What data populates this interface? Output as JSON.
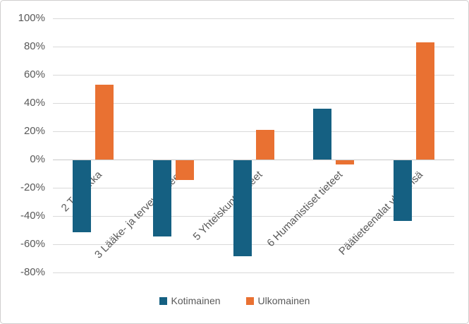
{
  "chart_data": {
    "type": "bar",
    "title": "",
    "xlabel": "",
    "ylabel": "",
    "categories": [
      "2 Tekniikka",
      "3 Lääke- ja terveystieteet",
      "5 Yhteiskuntatieteet",
      "6 Humanistiset tieteet",
      "Päätieteenalat yhteensä"
    ],
    "series": [
      {
        "name": "Kotimainen",
        "color": "#156082",
        "values": [
          -51,
          -54,
          -68,
          36,
          -43
        ]
      },
      {
        "name": "Ulkomainen",
        "color": "#E97132",
        "values": [
          53,
          -14,
          21,
          -3,
          83
        ]
      }
    ],
    "y_tick_labels": [
      "100%",
      "80%",
      "60%",
      "40%",
      "20%",
      "0%",
      "-20%",
      "-40%",
      "-60%",
      "-80%"
    ],
    "y_tick_values": [
      100,
      80,
      60,
      40,
      20,
      0,
      -20,
      -40,
      -60,
      -80
    ],
    "ylim": [
      -80,
      100
    ],
    "grid": true,
    "legend_position": "bottom",
    "colors": {
      "gridline": "#D9D9D9",
      "axis_text": "#595959",
      "frame_border": "#D0CECE",
      "background": "#FFFFFF"
    }
  }
}
